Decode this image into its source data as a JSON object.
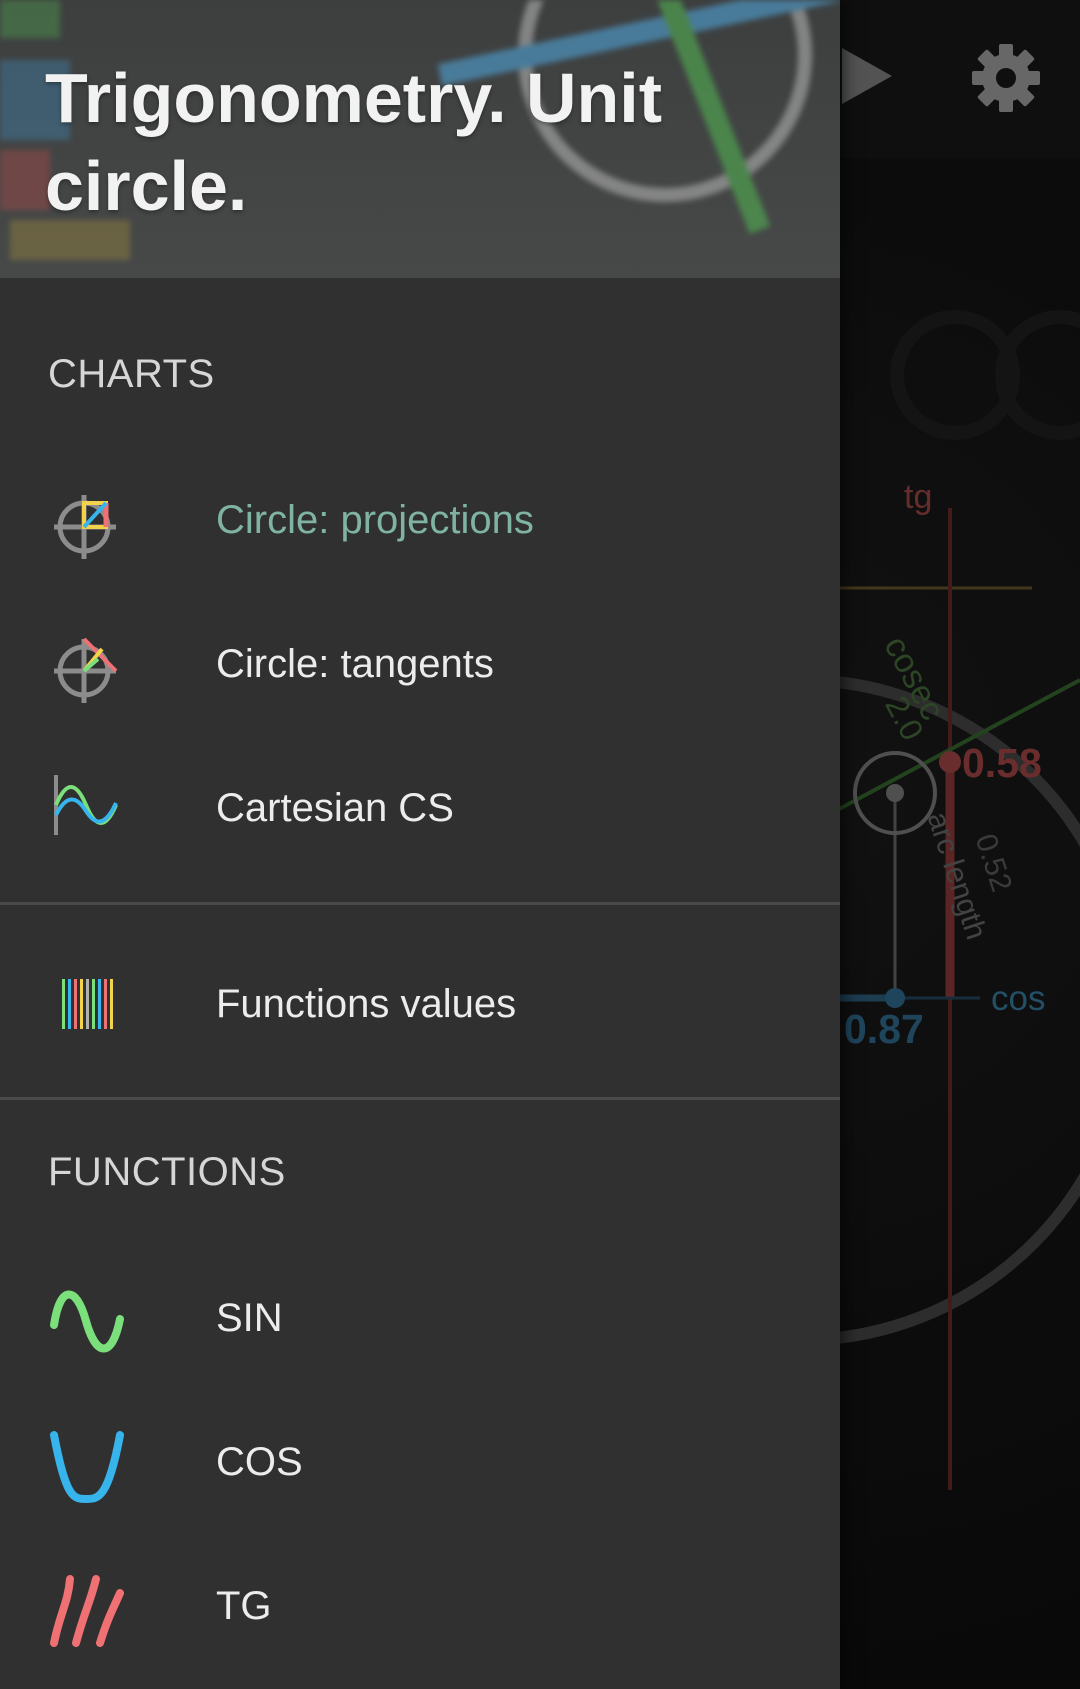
{
  "app": {
    "title": "Trigonometry. Unit circle."
  },
  "canvas": {
    "tg_axis_label": "tg",
    "cos_axis_label": "cos",
    "tg_value": "0.58",
    "cos_value": "0.87",
    "cosec_label": "cosec",
    "cosec_value": "2.0",
    "arc_length_label": "arc length",
    "arc_length_value": "0.52"
  },
  "drawer": {
    "charts_section": "CHARTS",
    "functions_section": "FUNCTIONS",
    "charts_items": [
      {
        "label": "Circle: projections",
        "icon": "circle-projections-icon",
        "active": true
      },
      {
        "label": "Circle: tangents",
        "icon": "circle-tangents-icon",
        "active": false
      },
      {
        "label": "Cartesian CS",
        "icon": "cartesian-cs-icon",
        "active": false
      }
    ],
    "values_item": {
      "label": "Functions values",
      "icon": "function-values-icon"
    },
    "function_items": [
      {
        "label": "SIN",
        "icon": "sine-wave-icon",
        "color": "#7be07b"
      },
      {
        "label": "COS",
        "icon": "cosine-wave-icon",
        "color": "#37b4ec"
      },
      {
        "label": "TG",
        "icon": "tangent-curves-icon",
        "color": "#f07173"
      }
    ]
  },
  "colors": {
    "accent_active": "#7fb3a3",
    "drawer_bg": "#303030",
    "tg_red": "#8e3d3d",
    "cos_blue": "#2a5d7c",
    "cosec_green": "#3b5c30"
  }
}
